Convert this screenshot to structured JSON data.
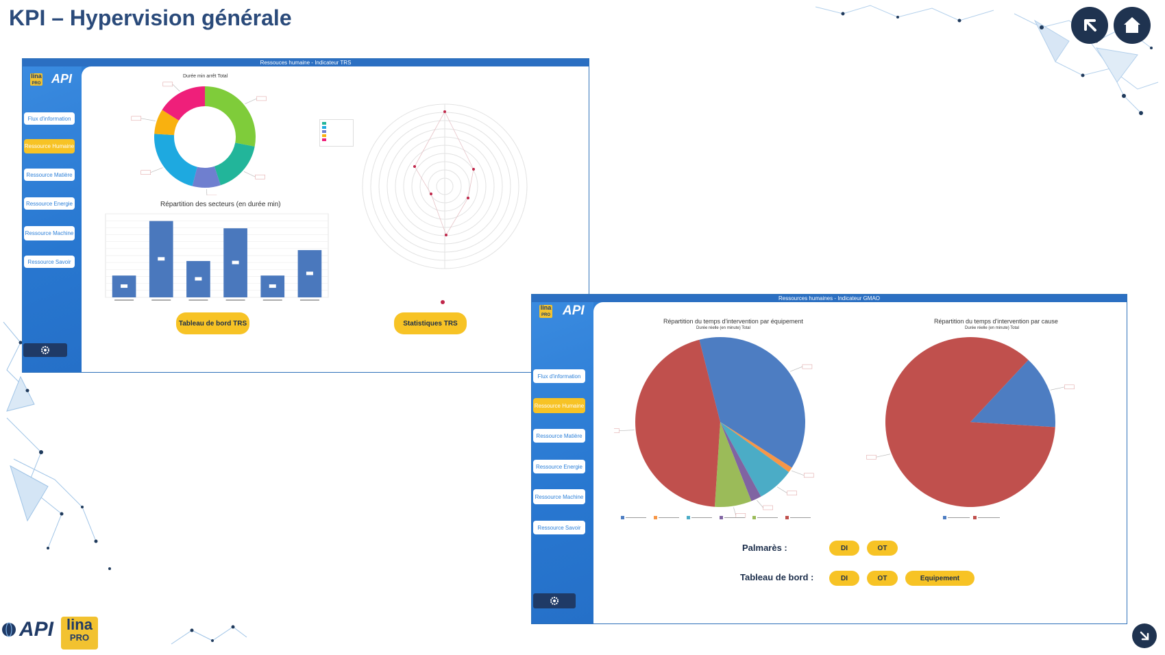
{
  "page": {
    "title": "KPI – Hypervision générale"
  },
  "panel1": {
    "bar_title": "Ressouces humaine - Indicateur TRS",
    "logo_api": "API",
    "logo_lina": "lina",
    "logo_pro": "PRO",
    "nav": [
      "Flux d'information",
      "Ressource Humaine",
      "Ressource Matière",
      "Ressource Energie",
      "Ressource Machine",
      "Ressource Savoir"
    ],
    "donut_title": "Durée min arrêt Total",
    "bar_chart_title": "Répartition des secteurs (en durée min)",
    "btn_tableau": "Tableau de bord TRS",
    "btn_stats": "Statistiques TRS"
  },
  "panel2": {
    "bar_title": "Ressources humaines - Indicateur GMAO",
    "logo_api": "API",
    "logo_lina": "lina",
    "logo_pro": "PRO",
    "nav": [
      "Flux d'information",
      "Ressource Humaine",
      "Ressource Matière",
      "Ressource Energie",
      "Ressource Machine",
      "Ressource Savoir"
    ],
    "pie1_title": "Répartition du temps d'intervention par équipement",
    "pie1_sub": "Durée réelle (en minute) Total",
    "pie2_title": "Répartition du temps d'intervention par cause",
    "pie2_sub": "Durée réelle (en minute) Total",
    "palmares_label": "Palmarès :",
    "tableau_label": "Tableau de bord :",
    "btn_di": "DI",
    "btn_ot": "OT",
    "btn_equipement": "Equipement"
  },
  "footer": {
    "logo_api": "API",
    "logo_lina": "lina",
    "logo_pro": "PRO"
  },
  "chart_data": [
    {
      "type": "pie",
      "title": "Durée min arrêt Total",
      "donut": true,
      "values": [
        28,
        17,
        9,
        22,
        8,
        16
      ],
      "colors": [
        "#7fcc3a",
        "#22b59a",
        "#6f7fcf",
        "#1ea9e0",
        "#f9b10f",
        "#ef1f7a"
      ]
    },
    {
      "type": "bar",
      "title": "Répartition des secteurs (en durée min)",
      "categories": [
        "S1",
        "S2",
        "S3",
        "S4",
        "S5",
        "S7"
      ],
      "values": [
        0.6,
        2.1,
        1.0,
        1.9,
        0.6,
        1.3
      ],
      "ylim": [
        0,
        2.3
      ],
      "color": "#4a78bd"
    },
    {
      "type": "pie",
      "title": "Répartition du temps d'intervention par équipement",
      "values": [
        38,
        1,
        7,
        2,
        7,
        45
      ],
      "colors": [
        "#4d7dc2",
        "#f79646",
        "#4bacc6",
        "#8064a2",
        "#9bbb59",
        "#c0504d"
      ]
    },
    {
      "type": "pie",
      "title": "Répartition du temps d'intervention par cause",
      "values": [
        14,
        86
      ],
      "colors": [
        "#4d7dc2",
        "#c0504d"
      ]
    }
  ]
}
